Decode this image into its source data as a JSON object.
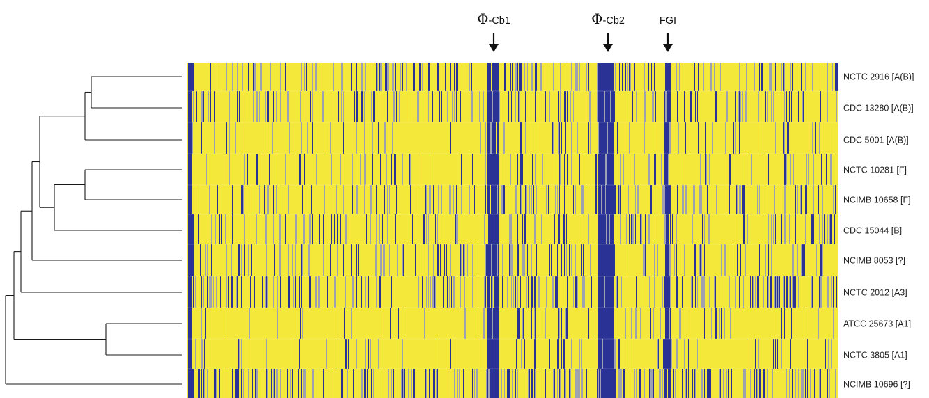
{
  "colors": {
    "present": "#f4e83a",
    "absent": "#2a3295",
    "divergent": "#9ea2b0",
    "dendrogram": "#1a1a1a",
    "text": "#222222"
  },
  "markers": [
    {
      "symbol": "Φ",
      "suffix": "-Cb1"
    },
    {
      "symbol": "Φ",
      "suffix": "-Cb2"
    },
    {
      "symbol": "",
      "suffix": "FGI"
    }
  ],
  "strains": [
    "NCTC 2916  [A(B)]",
    "CDC 13280  [A(B)]",
    "CDC 5001   [A(B)]",
    "NCTC 10281 [F]",
    "NCIMB 10658 [F]",
    "CDC 15044  [B]",
    "NCIMB 8053  [?]",
    "NCTC 2012  [A3]",
    "ATCC 25673 [A1]",
    "NCTC 3805  [A1]",
    "NCIMB 10696 [?]"
  ]
}
